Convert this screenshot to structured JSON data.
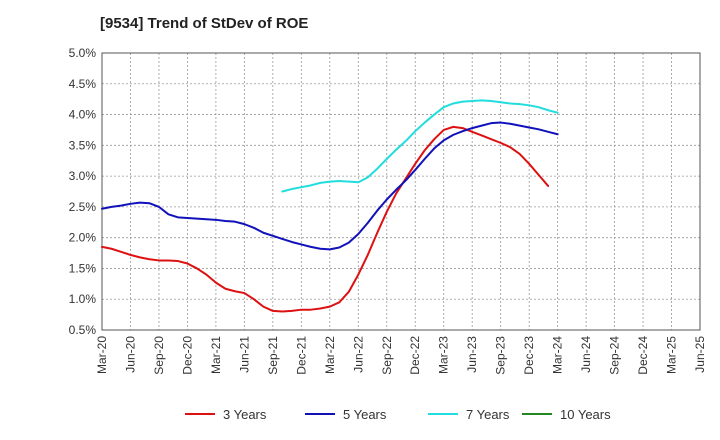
{
  "chart_data": {
    "type": "line",
    "title": "[9534]  Trend of StDev of ROE",
    "xlabel": "",
    "ylabel": "",
    "ylim": [
      0.5,
      5.0
    ],
    "grid": true,
    "legend_position": "bottom",
    "y_ticks": [
      "0.5%",
      "1.0%",
      "1.5%",
      "2.0%",
      "2.5%",
      "3.0%",
      "3.5%",
      "4.0%",
      "4.5%",
      "5.0%"
    ],
    "x_ticks": [
      "Mar-20",
      "Jun-20",
      "Sep-20",
      "Dec-20",
      "Mar-21",
      "Jun-21",
      "Sep-21",
      "Dec-21",
      "Mar-22",
      "Jun-22",
      "Sep-22",
      "Dec-22",
      "Mar-23",
      "Jun-23",
      "Sep-23",
      "Dec-23",
      "Mar-24",
      "Jun-24",
      "Sep-24",
      "Dec-24",
      "Mar-25",
      "Jun-25"
    ],
    "series": [
      {
        "name": "3 Years",
        "color": "#dd1111",
        "values": [
          [
            0,
            1.85
          ],
          [
            1,
            1.82
          ],
          [
            2,
            1.77
          ],
          [
            3,
            1.72
          ],
          [
            4,
            1.68
          ],
          [
            5,
            1.65
          ],
          [
            6,
            1.63
          ],
          [
            7,
            1.63
          ],
          [
            8,
            1.62
          ],
          [
            9,
            1.58
          ],
          [
            10,
            1.5
          ],
          [
            11,
            1.4
          ],
          [
            12,
            1.27
          ],
          [
            13,
            1.17
          ],
          [
            14,
            1.13
          ],
          [
            15,
            1.1
          ],
          [
            16,
            1.0
          ],
          [
            17,
            0.88
          ],
          [
            18,
            0.81
          ],
          [
            19,
            0.8
          ],
          [
            20,
            0.81
          ],
          [
            21,
            0.83
          ],
          [
            22,
            0.83
          ],
          [
            23,
            0.85
          ],
          [
            24,
            0.88
          ],
          [
            25,
            0.95
          ],
          [
            26,
            1.12
          ],
          [
            27,
            1.4
          ],
          [
            28,
            1.72
          ],
          [
            29,
            2.08
          ],
          [
            30,
            2.42
          ],
          [
            31,
            2.72
          ],
          [
            32,
            2.96
          ],
          [
            33,
            3.2
          ],
          [
            34,
            3.42
          ],
          [
            35,
            3.6
          ],
          [
            36,
            3.75
          ],
          [
            37,
            3.8
          ],
          [
            38,
            3.78
          ],
          [
            39,
            3.72
          ],
          [
            40,
            3.66
          ],
          [
            41,
            3.6
          ],
          [
            42,
            3.54
          ],
          [
            43,
            3.47
          ],
          [
            44,
            3.36
          ],
          [
            45,
            3.2
          ],
          [
            46,
            3.02
          ],
          [
            47,
            2.84
          ]
        ]
      },
      {
        "name": "5 Years",
        "color": "#1111bb",
        "values": [
          [
            0,
            2.47
          ],
          [
            1,
            2.5
          ],
          [
            2,
            2.52
          ],
          [
            3,
            2.55
          ],
          [
            4,
            2.57
          ],
          [
            5,
            2.56
          ],
          [
            6,
            2.5
          ],
          [
            7,
            2.38
          ],
          [
            8,
            2.33
          ],
          [
            9,
            2.32
          ],
          [
            10,
            2.31
          ],
          [
            11,
            2.3
          ],
          [
            12,
            2.29
          ],
          [
            13,
            2.27
          ],
          [
            14,
            2.26
          ],
          [
            15,
            2.22
          ],
          [
            16,
            2.16
          ],
          [
            17,
            2.08
          ],
          [
            18,
            2.03
          ],
          [
            19,
            1.98
          ],
          [
            20,
            1.93
          ],
          [
            21,
            1.89
          ],
          [
            22,
            1.85
          ],
          [
            23,
            1.82
          ],
          [
            24,
            1.81
          ],
          [
            25,
            1.84
          ],
          [
            26,
            1.92
          ],
          [
            27,
            2.06
          ],
          [
            28,
            2.24
          ],
          [
            29,
            2.44
          ],
          [
            30,
            2.62
          ],
          [
            31,
            2.78
          ],
          [
            32,
            2.93
          ],
          [
            33,
            3.1
          ],
          [
            34,
            3.28
          ],
          [
            35,
            3.45
          ],
          [
            36,
            3.58
          ],
          [
            37,
            3.67
          ],
          [
            38,
            3.73
          ],
          [
            39,
            3.78
          ],
          [
            40,
            3.82
          ],
          [
            41,
            3.86
          ],
          [
            42,
            3.87
          ],
          [
            43,
            3.85
          ],
          [
            44,
            3.82
          ],
          [
            45,
            3.79
          ],
          [
            46,
            3.76
          ],
          [
            47,
            3.72
          ],
          [
            48,
            3.68
          ]
        ]
      },
      {
        "name": "7 Years",
        "color": "#22dddd",
        "values": [
          [
            19,
            2.75
          ],
          [
            20,
            2.79
          ],
          [
            21,
            2.82
          ],
          [
            22,
            2.85
          ],
          [
            23,
            2.89
          ],
          [
            24,
            2.91
          ],
          [
            25,
            2.92
          ],
          [
            26,
            2.91
          ],
          [
            27,
            2.9
          ],
          [
            28,
            2.98
          ],
          [
            29,
            3.12
          ],
          [
            30,
            3.28
          ],
          [
            31,
            3.43
          ],
          [
            32,
            3.57
          ],
          [
            33,
            3.73
          ],
          [
            34,
            3.87
          ],
          [
            35,
            4.0
          ],
          [
            36,
            4.12
          ],
          [
            37,
            4.18
          ],
          [
            38,
            4.21
          ],
          [
            39,
            4.22
          ],
          [
            40,
            4.23
          ],
          [
            41,
            4.22
          ],
          [
            42,
            4.2
          ],
          [
            43,
            4.18
          ],
          [
            44,
            4.17
          ],
          [
            45,
            4.15
          ],
          [
            46,
            4.12
          ],
          [
            47,
            4.07
          ],
          [
            48,
            4.03
          ]
        ]
      },
      {
        "name": "10 Years",
        "color": "#228822",
        "values": []
      }
    ]
  }
}
